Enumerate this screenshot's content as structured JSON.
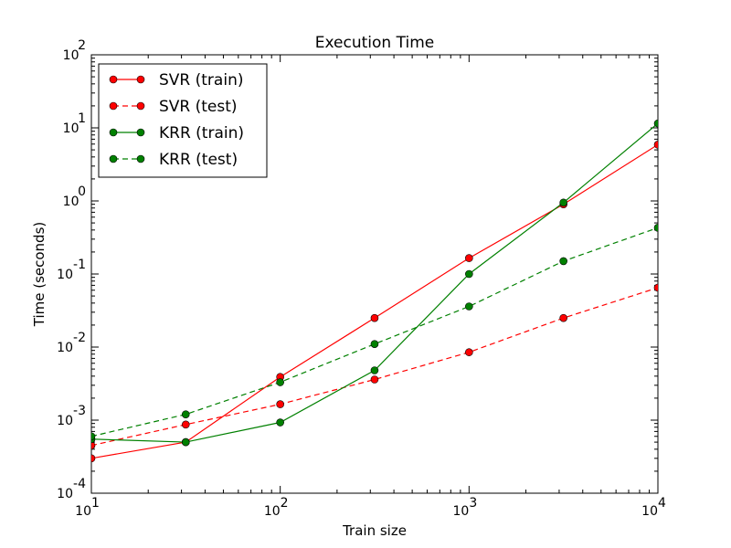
{
  "chart_data": {
    "type": "line",
    "title": "Execution Time",
    "xlabel": "Train size",
    "ylabel": "Time (seconds)",
    "xscale": "log",
    "yscale": "log",
    "xlim": [
      10,
      10000
    ],
    "ylim": [
      0.0001,
      100
    ],
    "grid": false,
    "legend_position": "top-left",
    "x_ticks": [
      {
        "value": 10,
        "base": "10",
        "exp": "1"
      },
      {
        "value": 100,
        "base": "10",
        "exp": "2"
      },
      {
        "value": 1000,
        "base": "10",
        "exp": "3"
      },
      {
        "value": 10000,
        "base": "10",
        "exp": "4"
      }
    ],
    "y_ticks": [
      {
        "value": 0.0001,
        "base": "10",
        "exp": "-4"
      },
      {
        "value": 0.001,
        "base": "10",
        "exp": "-3"
      },
      {
        "value": 0.01,
        "base": "10",
        "exp": "-2"
      },
      {
        "value": 0.1,
        "base": "10",
        "exp": "-1"
      },
      {
        "value": 1,
        "base": "10",
        "exp": "0"
      },
      {
        "value": 10,
        "base": "10",
        "exp": "1"
      },
      {
        "value": 100,
        "base": "10",
        "exp": "2"
      }
    ],
    "x": [
      10,
      31.6,
      100,
      316,
      1000,
      3162,
      10000
    ],
    "series": [
      {
        "name": "SVR (train)",
        "color": "#ff0000",
        "dashed": false,
        "values": [
          0.0003,
          0.0005,
          0.0039,
          0.025,
          0.165,
          0.9,
          5.9
        ]
      },
      {
        "name": "SVR (test)",
        "color": "#ff0000",
        "dashed": true,
        "values": [
          0.00045,
          0.00087,
          0.00165,
          0.0036,
          0.0085,
          0.025,
          0.065
        ]
      },
      {
        "name": "KRR (train)",
        "color": "#008000",
        "dashed": false,
        "values": [
          0.00055,
          0.0005,
          0.00093,
          0.0048,
          0.1,
          0.95,
          11.5
        ]
      },
      {
        "name": "KRR (test)",
        "color": "#008000",
        "dashed": true,
        "values": [
          0.0006,
          0.0012,
          0.0033,
          0.011,
          0.036,
          0.15,
          0.43
        ]
      }
    ]
  }
}
